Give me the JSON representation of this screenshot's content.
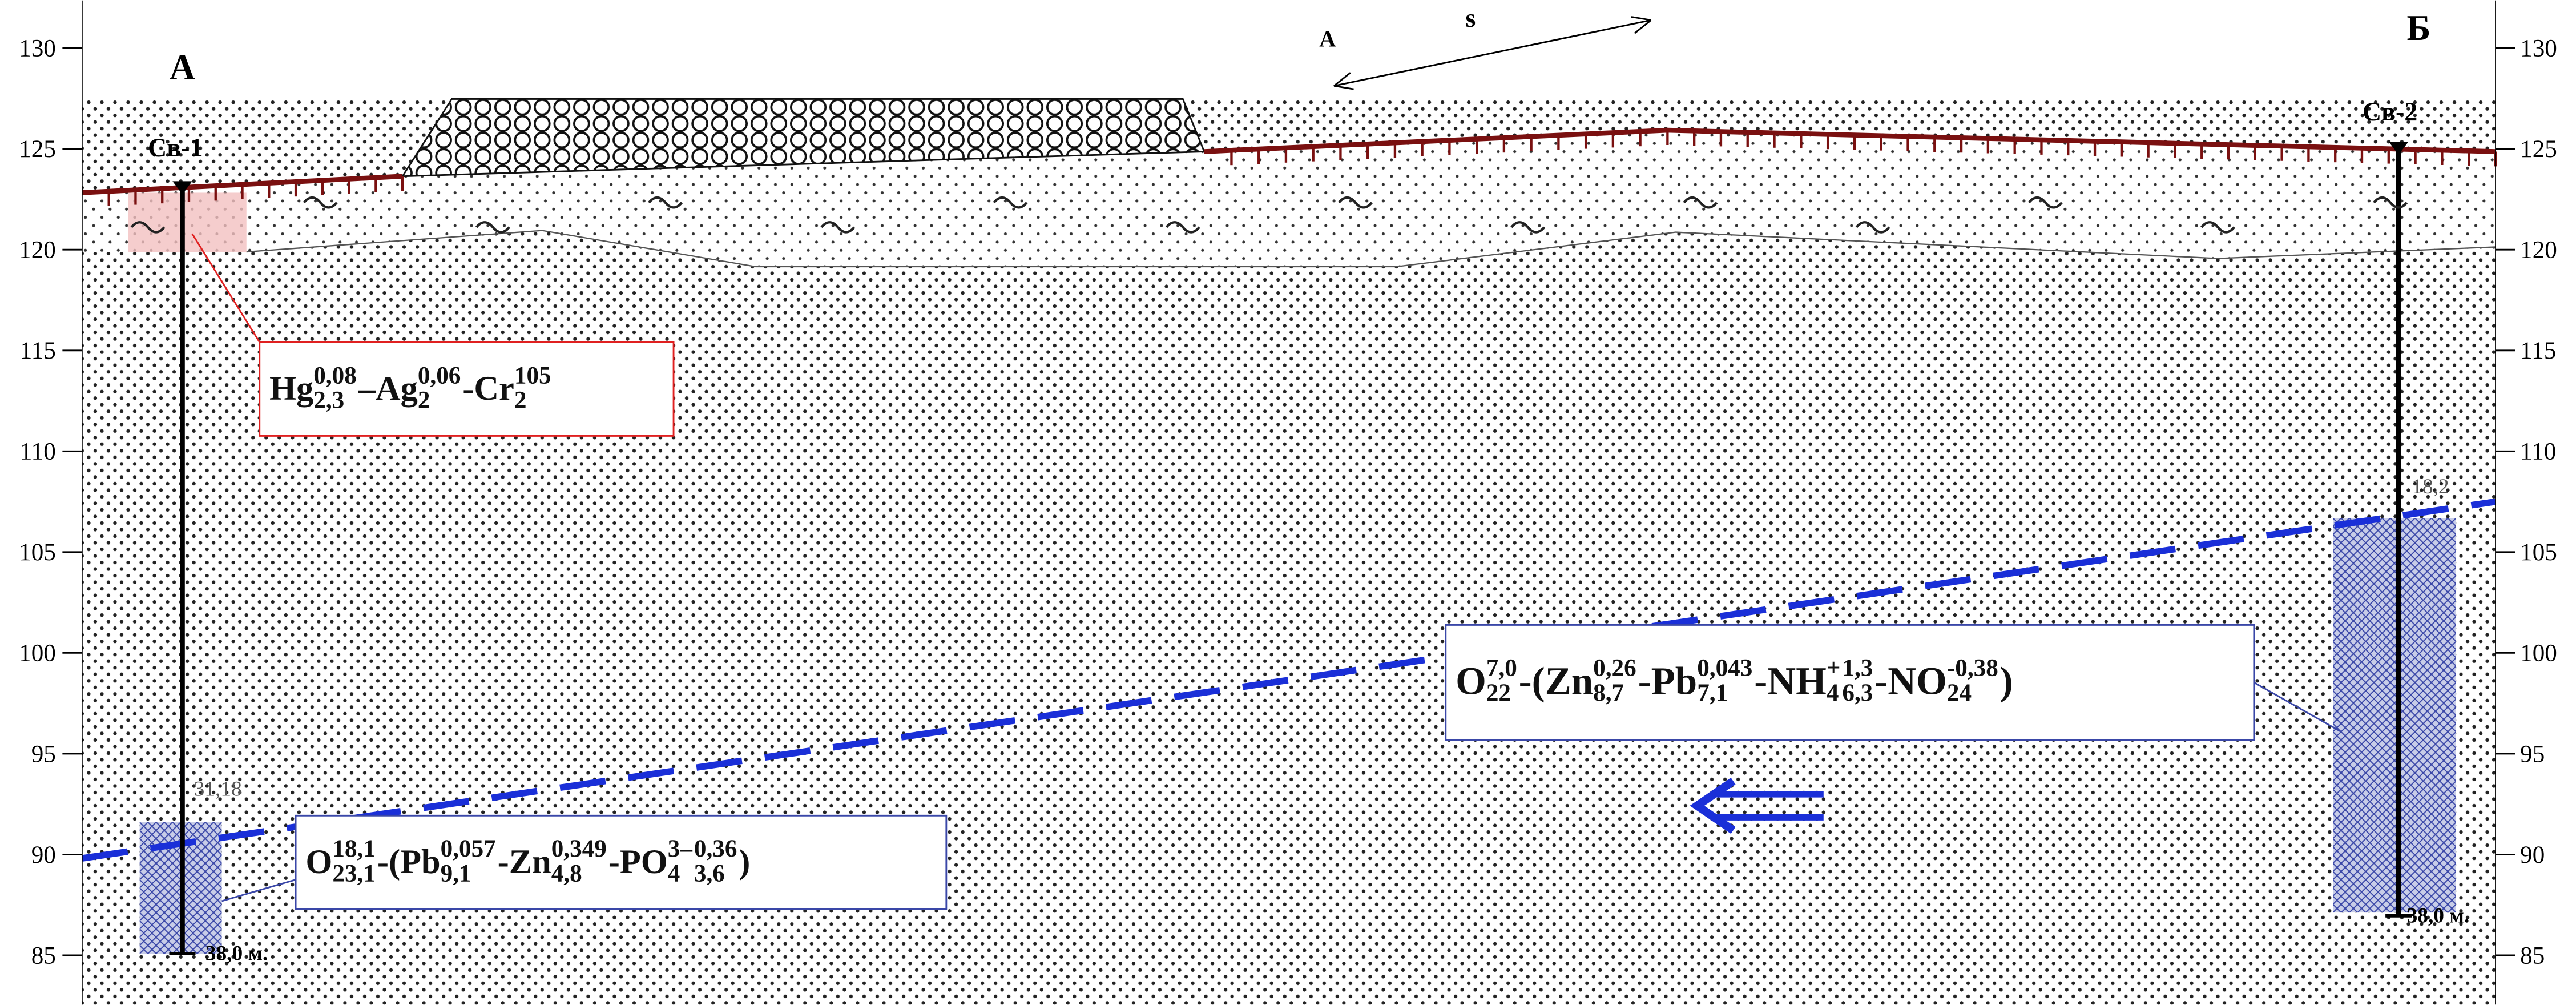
{
  "scale": {
    "ticks": [
      130,
      125,
      120,
      115,
      110,
      105,
      100,
      95,
      90,
      85
    ]
  },
  "labels": {
    "left_end": "А",
    "right_end": "Б",
    "well_1": "Св-1",
    "well_2": "Св-2",
    "level_1": "31,18",
    "level_2": "18,2",
    "depth_1": "38,0 м.",
    "depth_2": "38,0 м.",
    "direction": "А",
    "direction_sign": "s"
  },
  "formulas": [
    {
      "parts": [
        {
          "t": "Hg",
          "sup": "0,08",
          "sub": "2,3"
        },
        {
          "t": "–Ag",
          "sup": "0,06",
          "sub": "2"
        },
        {
          "t": "-Cr",
          "sup": "105",
          "sub": "2"
        }
      ]
    },
    {
      "parts": [
        {
          "t": "O",
          "sup": "18,1",
          "sub": "23,1"
        },
        {
          "t": "-(Pb",
          "sup": "0,057",
          "sub": "9,1"
        },
        {
          "t": "-Zn",
          "sup": "0,349",
          "sub": "4,8"
        },
        {
          "t": "-PO",
          "sup": "3–",
          "sub": "4"
        },
        {
          "sup": "0,36",
          "sub": "3,6"
        },
        {
          "t": ")"
        }
      ]
    },
    {
      "parts": [
        {
          "t": "O",
          "sup": "7,0",
          "sub": "22"
        },
        {
          "t": "-(Zn",
          "sup": "0,26",
          "sub": "8,7"
        },
        {
          "t": "-Pb",
          "sup": "0,043",
          "sub": "7,1"
        },
        {
          "t": "-NH",
          "sup": "+",
          "sub": "4"
        },
        {
          "sup": "1,3",
          "sub": "6,3"
        },
        {
          "t": "-NO",
          "sup": "-0,38",
          "sub": "24"
        },
        {
          "t": ")"
        }
      ]
    }
  ]
}
